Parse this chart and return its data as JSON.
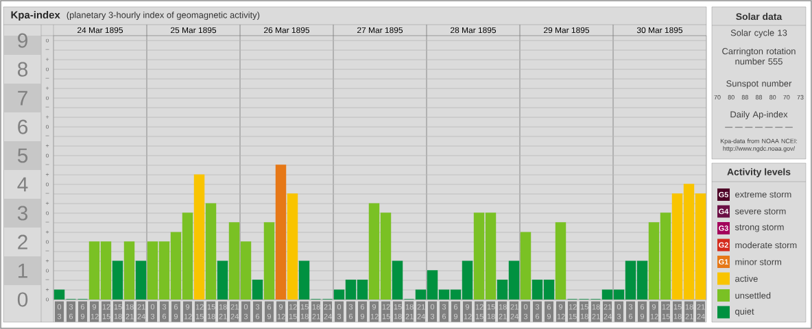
{
  "chart_data": [
    {
      "type": "bar",
      "title": "Kpa-index",
      "subtitle": "(planetary 3-hourly index of geomagnetic activity)",
      "categories": [
        "0 3",
        "3 6",
        "6 9",
        "9 12",
        "12 15",
        "15 18",
        "18 21",
        "21 24",
        "0 3",
        "3 6",
        "6 9",
        "9 12",
        "12 15",
        "15 18",
        "18 21",
        "21 24",
        "0 3",
        "3 6",
        "6 9",
        "9 12",
        "12 15",
        "15 18",
        "18 21",
        "21 24",
        "0 3",
        "3 6",
        "6 9",
        "9 12",
        "12 15",
        "15 18",
        "18 21",
        "21 24",
        "0 3",
        "3 6",
        "6 9",
        "9 12",
        "12 15",
        "15 18",
        "18 21",
        "21 24",
        "0 3",
        "3 6",
        "6 9",
        "9 12",
        "12 15",
        "15 18",
        "18 21",
        "21 24",
        "0 3",
        "3 6",
        "6 9",
        "9 12",
        "12 15",
        "15 18",
        "18 21",
        "21 24"
      ],
      "values": [
        0.33,
        0,
        0,
        2,
        2,
        1.33,
        2,
        1.33,
        2,
        2,
        2.33,
        3,
        4.33,
        3.33,
        1.33,
        2.67,
        2,
        0.67,
        2.67,
        4.67,
        3.67,
        1.33,
        0,
        0,
        0.33,
        0.67,
        0.67,
        3.33,
        3,
        1.33,
        0,
        0.33,
        1,
        0.33,
        0.33,
        1.33,
        3,
        3,
        0.67,
        1.33,
        2.33,
        0.67,
        0.67,
        2.67,
        0,
        0,
        0,
        0.33,
        0.33,
        1.33,
        1.33,
        2.67,
        3,
        3.67,
        4,
        3.67
      ],
      "colors": [
        "#009140",
        "#009140",
        "#009140",
        "#7ac124",
        "#7ac124",
        "#009140",
        "#7ac124",
        "#009140",
        "#7ac124",
        "#7ac124",
        "#7ac124",
        "#7ac124",
        "#f9c400",
        "#7ac124",
        "#009140",
        "#7ac124",
        "#7ac124",
        "#009140",
        "#7ac124",
        "#e67817",
        "#f9c400",
        "#009140",
        "#009140",
        "#009140",
        "#009140",
        "#009140",
        "#009140",
        "#7ac124",
        "#7ac124",
        "#009140",
        "#009140",
        "#009140",
        "#009140",
        "#009140",
        "#009140",
        "#009140",
        "#7ac124",
        "#7ac124",
        "#009140",
        "#009140",
        "#7ac124",
        "#009140",
        "#009140",
        "#7ac124",
        "#009140",
        "#009140",
        "#009140",
        "#009140",
        "#009140",
        "#009140",
        "#009140",
        "#7ac124",
        "#7ac124",
        "#f9c400",
        "#f9c400",
        "#f9c400"
      ],
      "ylim": [
        0,
        9.17
      ],
      "yticks": [
        0,
        1,
        2,
        3,
        4,
        5,
        6,
        7,
        8,
        9
      ],
      "annotations": [
        "o",
        "+",
        "–",
        "o",
        "+",
        "–",
        "o",
        "+",
        "–",
        "o",
        "+",
        "–",
        "o",
        "+",
        "–",
        "o",
        "+",
        "–",
        "o",
        "+",
        "–",
        "o",
        "+",
        "–",
        "o",
        "+",
        "–",
        "o",
        "24 Mar 1895",
        "25 Mar 1895",
        "26 Mar 1895",
        "27 Mar 1895",
        "28 Mar 1895",
        "29 Mar 1895",
        "30 Mar 1895"
      ],
      "grid": true
    },
    {
      "type": "other",
      "title": "Solar data",
      "annotations": [
        "Solar cycle 13",
        "Carrington rotation number 555",
        "Sunspot number",
        "Daily Ap-index",
        "— — — — — — —",
        "Kpa-data from NOAA NCEI: http://www.ngdc.noaa.gov/"
      ],
      "values": [
        70,
        80,
        88,
        88,
        80,
        70,
        73
      ],
      "data_labels": true
    },
    {
      "type": "other",
      "title": "Activity levels",
      "categories": [
        "G5",
        "G4",
        "G3",
        "G2",
        "G1",
        null,
        null,
        null
      ],
      "colors": [
        "#4d0026",
        "#6b0f45",
        "#a3005b",
        "#d42b1d",
        "#e67817",
        "#f9c400",
        "#7ac124",
        "#009140"
      ],
      "annotations": [
        "extreme storm",
        "severe storm",
        "strong storm",
        "moderate storm",
        "minor storm",
        "active",
        "unsettled",
        "quiet"
      ]
    }
  ]
}
